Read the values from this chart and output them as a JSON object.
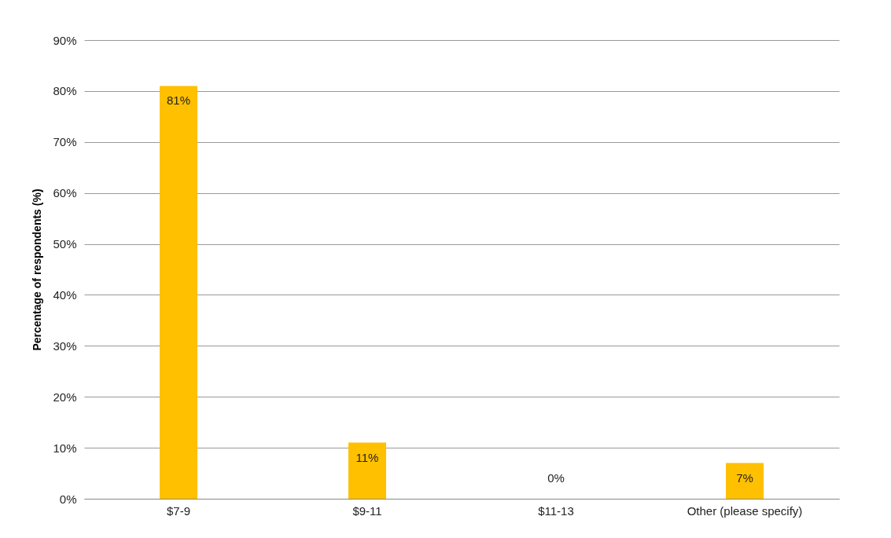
{
  "chart_data": {
    "type": "bar",
    "ylabel": "Percentage of respondents (%)",
    "categories": [
      "$7-9",
      "$9-11",
      "$11-13",
      "Other (please specify)"
    ],
    "values": [
      81,
      11,
      0,
      7
    ],
    "value_labels": [
      "81%",
      "11%",
      "0%",
      "7%"
    ],
    "color": "#ffc000",
    "ylim": [
      0,
      90
    ],
    "yticks": [
      {
        "value": 0,
        "label": "0%"
      },
      {
        "value": 10,
        "label": "10%"
      },
      {
        "value": 20,
        "label": "20%"
      },
      {
        "value": 30,
        "label": "30%"
      },
      {
        "value": 40,
        "label": "40%"
      },
      {
        "value": 50,
        "label": "50%"
      },
      {
        "value": 60,
        "label": "60%"
      },
      {
        "value": 70,
        "label": "70%"
      },
      {
        "value": 80,
        "label": "80%"
      },
      {
        "value": 90,
        "label": "90%"
      }
    ],
    "grid": "y"
  }
}
